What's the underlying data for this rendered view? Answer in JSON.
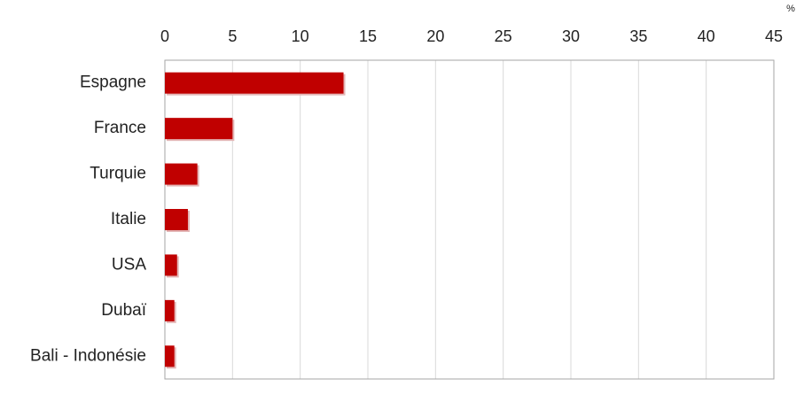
{
  "chart_data": {
    "type": "bar",
    "orientation": "horizontal",
    "unit": "%",
    "categories": [
      "Espagne",
      "France",
      "Turquie",
      "Italie",
      "USA",
      "Dubaï",
      "Bali - Indonésie"
    ],
    "values": [
      13.2,
      5.0,
      2.4,
      1.7,
      0.9,
      0.7,
      0.7
    ],
    "color": "#c00000",
    "xlim": [
      0,
      45
    ],
    "xticks": [
      0,
      5,
      10,
      15,
      20,
      25,
      30,
      35,
      40,
      45
    ],
    "grid": true
  }
}
